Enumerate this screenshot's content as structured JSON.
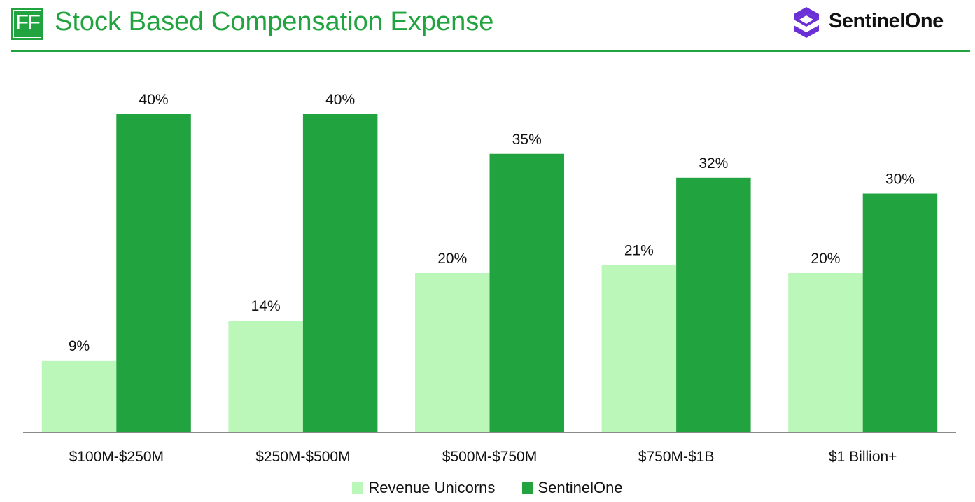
{
  "header": {
    "logo_text": "FF",
    "title": "Stock Based Compensation Expense",
    "brand": "SentinelOne"
  },
  "colors": {
    "accent": "#21a33f",
    "series_light": "#bbf7b9",
    "series_dark": "#21a33f",
    "brand_purple": "#6b2fd6"
  },
  "icons": {
    "brand_logo": "sentinelone-logo-icon"
  },
  "chart_data": {
    "type": "bar",
    "title": "Stock Based Compensation Expense",
    "categories": [
      "$100M-$250M",
      "$250M-$500M",
      "$500M-$750M",
      "$750M-$1B",
      "$1 Billion+"
    ],
    "series": [
      {
        "name": "Revenue Unicorns",
        "values": [
          9,
          14,
          20,
          21,
          20
        ],
        "labels": [
          "9%",
          "14%",
          "20%",
          "21%",
          "20%"
        ]
      },
      {
        "name": "SentinelOne",
        "values": [
          40,
          40,
          35,
          32,
          30
        ],
        "labels": [
          "40%",
          "40%",
          "35%",
          "32%",
          "30%"
        ]
      }
    ],
    "ylim": [
      0,
      42
    ],
    "grid": false,
    "legend": "bottom-center",
    "xlabel": "",
    "ylabel": ""
  }
}
